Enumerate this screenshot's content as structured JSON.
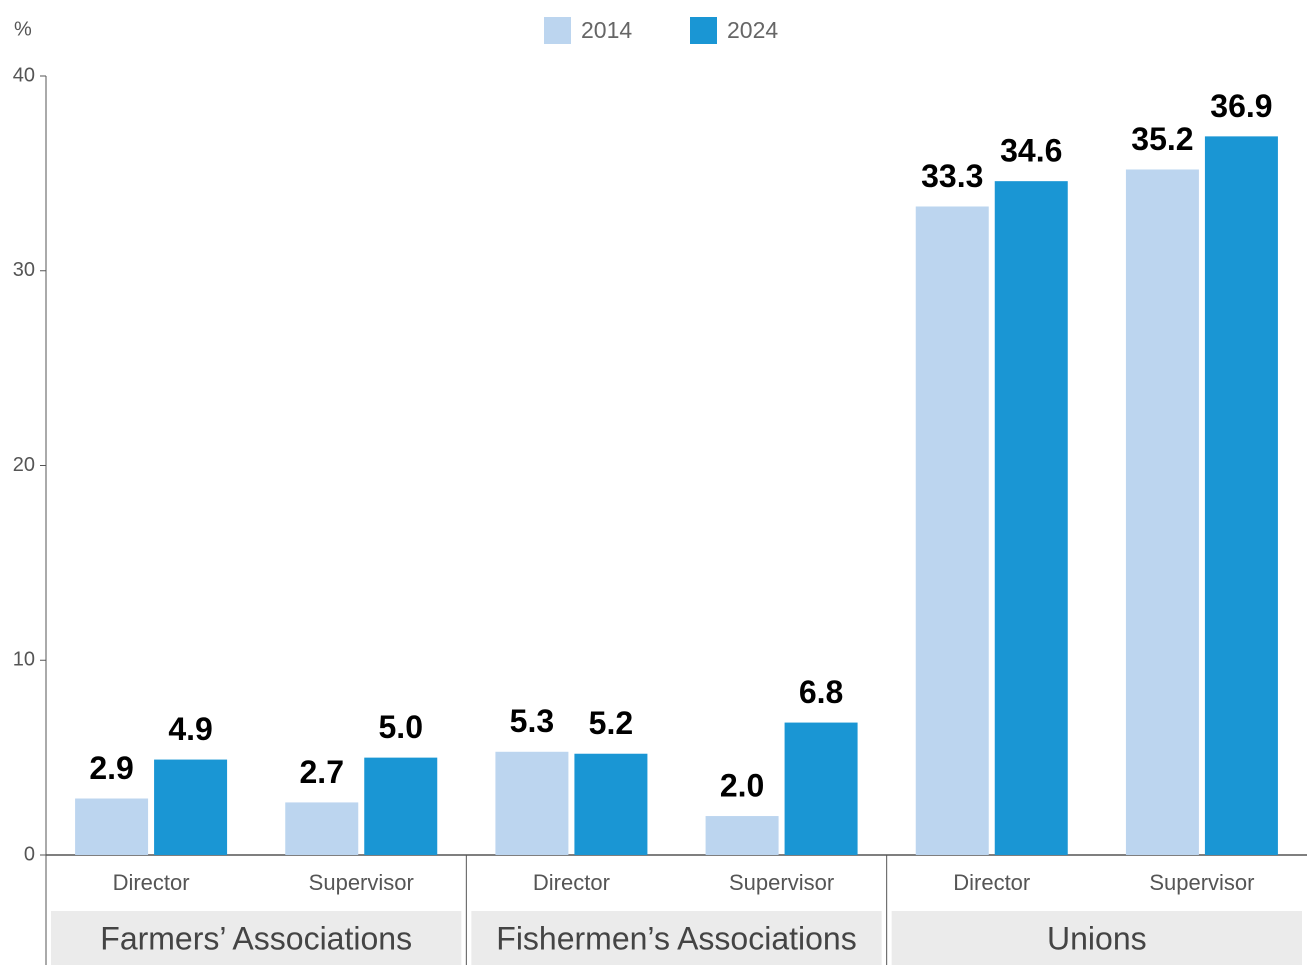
{
  "chart_data": {
    "type": "bar",
    "y_axis_label": "%",
    "categories": [
      "Director",
      "Supervisor",
      "Director",
      "Supervisor",
      "Director",
      "Supervisor"
    ],
    "groups": [
      "Farmers’ Associations",
      "Fishermen’s Associations",
      "Unions"
    ],
    "series": [
      {
        "name": "2014",
        "color": "#bcd5ef",
        "values": [
          2.9,
          2.7,
          5.3,
          2.0,
          33.3,
          35.2
        ],
        "value_labels": [
          "2.9",
          "2.7",
          "5.3",
          "2.0",
          "33.3",
          "35.2"
        ]
      },
      {
        "name": "2024",
        "color": "#1a96d4",
        "values": [
          4.9,
          5.0,
          5.2,
          6.8,
          34.6,
          36.9
        ],
        "value_labels": [
          "4.9",
          "5.0",
          "5.2",
          "6.8",
          "34.6",
          "36.9"
        ]
      }
    ],
    "ylim": [
      0,
      40
    ],
    "yticks": [
      0,
      10,
      20,
      30,
      40
    ],
    "legend": "top"
  }
}
